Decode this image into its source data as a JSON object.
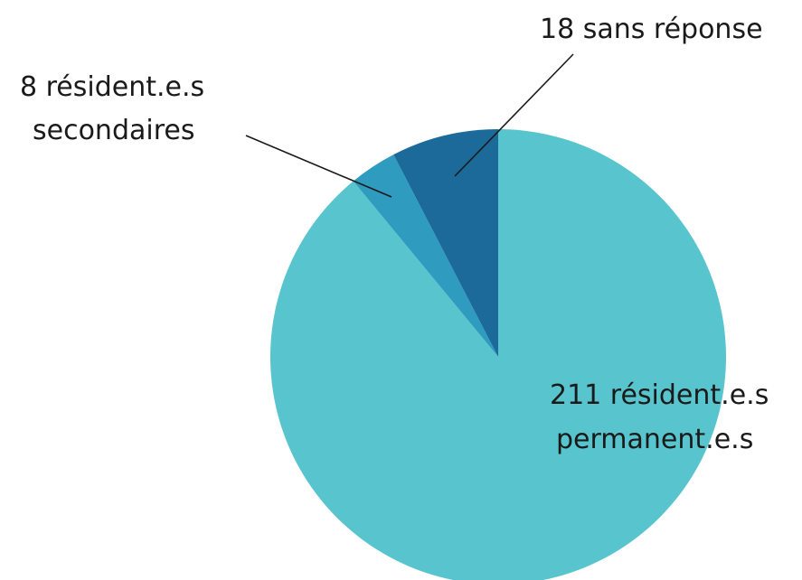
{
  "chart_data": {
    "type": "pie",
    "slices": [
      {
        "label": "211 résident.e.s permanent.e.s",
        "lines": [
          "211 résident.e.s",
          "permanent.e.s"
        ],
        "value": 211,
        "color": "#58c4ce"
      },
      {
        "label": "8 résident.e.s secondaires",
        "lines": [
          "8 résident.e.s",
          "secondaires"
        ],
        "value": 8,
        "color": "#2e9bbf"
      },
      {
        "label": "18 sans réponse",
        "lines": [
          "18 sans réponse"
        ],
        "value": 18,
        "color": "#1c6a9a"
      }
    ],
    "start": "12 o'clock",
    "direction": "clockwise"
  }
}
